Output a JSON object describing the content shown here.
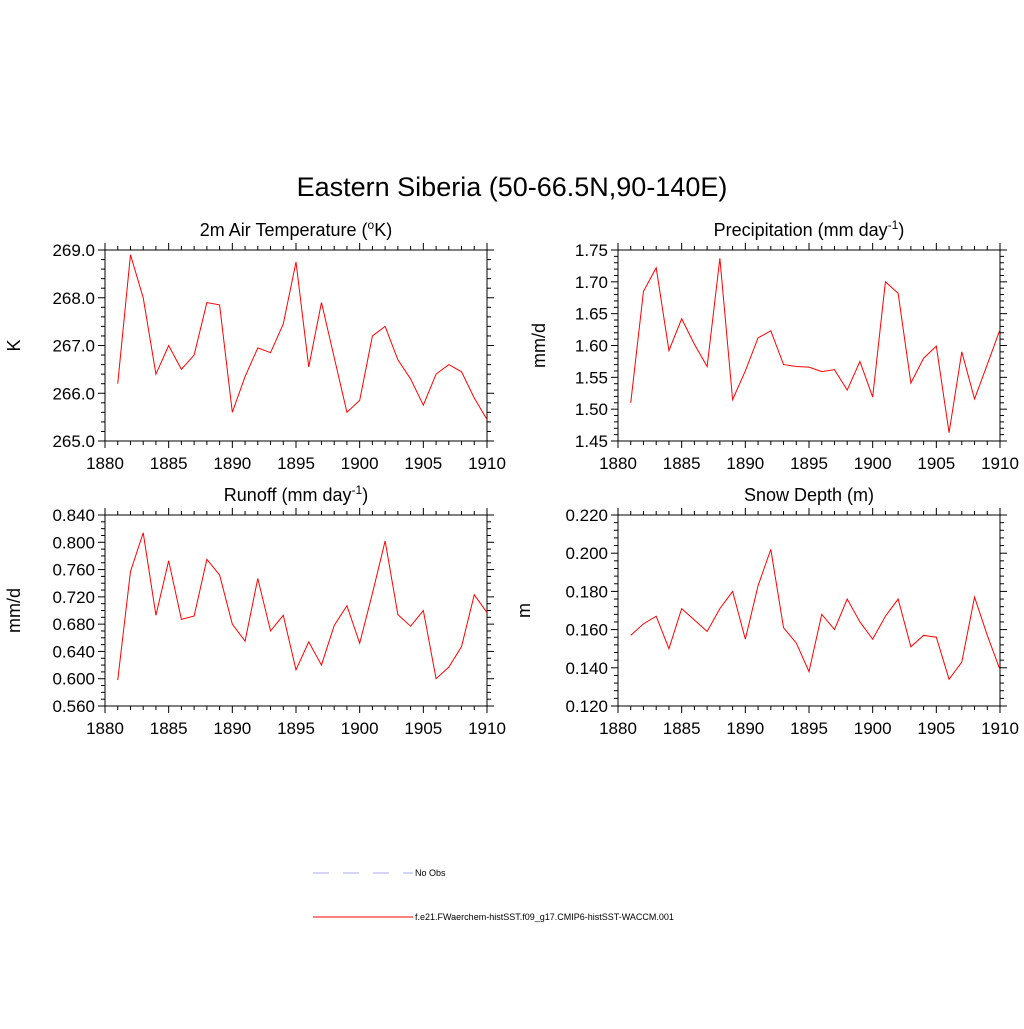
{
  "title": "Eastern Siberia (50-66.5N,90-140E)",
  "colors": {
    "model": "#ff0000",
    "obs": "#aaaaee"
  },
  "legend": {
    "obs_label": "No Obs",
    "model_label": "f.e21.FWaerchem-histSST.f09_g17.CMIP6-histSST-WACCM.001"
  },
  "chart_data": [
    {
      "type": "line",
      "title": "2m Air Temperature (",
      "title_sup": "o",
      "title_end": "K)",
      "ylabel": "K",
      "xlim": [
        1880,
        1910
      ],
      "ylim": [
        265.0,
        269.0
      ],
      "x_ticks": [
        1880,
        1885,
        1890,
        1895,
        1900,
        1905,
        1910
      ],
      "x_tick_labels": [
        "1880",
        "1885",
        "1890",
        "1895",
        "1900",
        "1905",
        "1910"
      ],
      "y_ticks": [
        265.0,
        266.0,
        267.0,
        268.0,
        269.0
      ],
      "y_tick_labels": [
        "265.0",
        "266.0",
        "267.0",
        "268.0",
        "269.0"
      ],
      "y_minor_step": 0.2,
      "x": [
        1881,
        1882,
        1883,
        1884,
        1885,
        1886,
        1887,
        1888,
        1889,
        1890,
        1891,
        1892,
        1893,
        1894,
        1895,
        1896,
        1897,
        1898,
        1899,
        1900,
        1901,
        1902,
        1903,
        1904,
        1905,
        1906,
        1907,
        1908,
        1909,
        1910
      ],
      "series": [
        {
          "values": [
            266.2,
            268.9,
            268.0,
            266.4,
            267.0,
            266.5,
            266.8,
            267.9,
            267.85,
            265.6,
            266.35,
            266.95,
            266.85,
            267.45,
            268.75,
            266.55,
            267.9,
            266.75,
            265.6,
            265.85,
            267.2,
            267.4,
            266.7,
            266.3,
            265.75,
            266.4,
            266.6,
            266.45,
            265.9,
            265.45
          ]
        }
      ]
    },
    {
      "type": "line",
      "title": "Precipitation (mm day",
      "title_sup": "-1",
      "title_end": ")",
      "ylabel": "mm/d",
      "xlim": [
        1880,
        1910
      ],
      "ylim": [
        1.45,
        1.75
      ],
      "x_ticks": [
        1880,
        1885,
        1890,
        1895,
        1900,
        1905,
        1910
      ],
      "x_tick_labels": [
        "1880",
        "1885",
        "1890",
        "1895",
        "1900",
        "1905",
        "1910"
      ],
      "y_ticks": [
        1.45,
        1.5,
        1.55,
        1.6,
        1.65,
        1.7,
        1.75
      ],
      "y_tick_labels": [
        "1.45",
        "1.50",
        "1.55",
        "1.60",
        "1.65",
        "1.70",
        "1.75"
      ],
      "y_minor_step": 0.01,
      "x": [
        1881,
        1882,
        1883,
        1884,
        1885,
        1886,
        1887,
        1888,
        1889,
        1890,
        1891,
        1892,
        1893,
        1894,
        1895,
        1896,
        1897,
        1898,
        1899,
        1900,
        1901,
        1902,
        1903,
        1904,
        1905,
        1906,
        1907,
        1908,
        1909,
        1910
      ],
      "series": [
        {
          "values": [
            1.51,
            1.685,
            1.722,
            1.592,
            1.642,
            1.602,
            1.567,
            1.737,
            1.515,
            1.56,
            1.612,
            1.623,
            1.57,
            1.567,
            1.566,
            1.559,
            1.562,
            1.53,
            1.575,
            1.519,
            1.7,
            1.682,
            1.541,
            1.58,
            1.599,
            1.463,
            1.59,
            1.516,
            1.57,
            1.625
          ]
        }
      ]
    },
    {
      "type": "line",
      "title": "Runoff (mm day",
      "title_sup": "-1",
      "title_end": ")",
      "ylabel": "mm/d",
      "xlim": [
        1880,
        1910
      ],
      "ylim": [
        0.56,
        0.84
      ],
      "x_ticks": [
        1880,
        1885,
        1890,
        1895,
        1900,
        1905,
        1910
      ],
      "x_tick_labels": [
        "1880",
        "1885",
        "1890",
        "1895",
        "1900",
        "1905",
        "1910"
      ],
      "y_ticks": [
        0.56,
        0.6,
        0.64,
        0.68,
        0.72,
        0.76,
        0.8,
        0.84
      ],
      "y_tick_labels": [
        "0.560",
        "0.600",
        "0.640",
        "0.680",
        "0.720",
        "0.760",
        "0.800",
        "0.840"
      ],
      "y_minor_step": 0.01,
      "x": [
        1881,
        1882,
        1883,
        1884,
        1885,
        1886,
        1887,
        1888,
        1889,
        1890,
        1891,
        1892,
        1893,
        1894,
        1895,
        1896,
        1897,
        1898,
        1899,
        1900,
        1901,
        1902,
        1903,
        1904,
        1905,
        1906,
        1907,
        1908,
        1909,
        1910
      ],
      "series": [
        {
          "values": [
            0.598,
            0.757,
            0.814,
            0.693,
            0.773,
            0.687,
            0.692,
            0.775,
            0.752,
            0.68,
            0.655,
            0.747,
            0.67,
            0.693,
            0.613,
            0.654,
            0.62,
            0.678,
            0.707,
            0.652,
            0.725,
            0.802,
            0.694,
            0.677,
            0.7,
            0.6,
            0.617,
            0.647,
            0.723,
            0.697
          ]
        }
      ]
    },
    {
      "type": "line",
      "title": "Snow Depth (m)",
      "title_sup": "",
      "title_end": "",
      "ylabel": "m",
      "xlim": [
        1880,
        1910
      ],
      "ylim": [
        0.12,
        0.22
      ],
      "x_ticks": [
        1880,
        1885,
        1890,
        1895,
        1900,
        1905,
        1910
      ],
      "x_tick_labels": [
        "1880",
        "1885",
        "1890",
        "1895",
        "1900",
        "1905",
        "1910"
      ],
      "y_ticks": [
        0.12,
        0.14,
        0.16,
        0.18,
        0.2,
        0.22
      ],
      "y_tick_labels": [
        "0.120",
        "0.140",
        "0.160",
        "0.180",
        "0.200",
        "0.220"
      ],
      "y_minor_step": 0.004,
      "x": [
        1881,
        1882,
        1883,
        1884,
        1885,
        1886,
        1887,
        1888,
        1889,
        1890,
        1891,
        1892,
        1893,
        1894,
        1895,
        1896,
        1897,
        1898,
        1899,
        1900,
        1901,
        1902,
        1903,
        1904,
        1905,
        1906,
        1907,
        1908,
        1909,
        1910
      ],
      "series": [
        {
          "values": [
            0.157,
            0.163,
            0.167,
            0.15,
            0.171,
            0.165,
            0.159,
            0.171,
            0.18,
            0.155,
            0.183,
            0.202,
            0.161,
            0.153,
            0.138,
            0.168,
            0.16,
            0.176,
            0.164,
            0.155,
            0.167,
            0.176,
            0.151,
            0.157,
            0.156,
            0.134,
            0.143,
            0.177,
            0.157,
            0.139
          ]
        }
      ]
    }
  ]
}
